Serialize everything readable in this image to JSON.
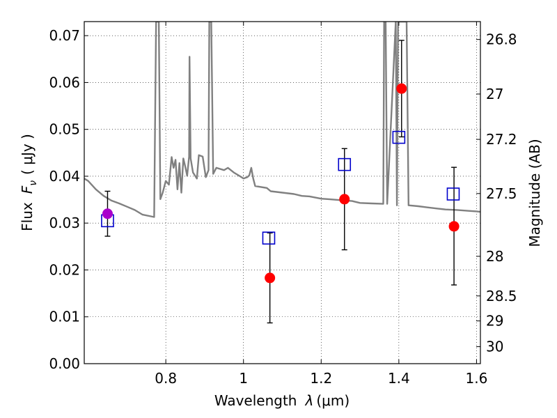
{
  "chart_data": {
    "type": "scatter",
    "xlabel": "Wavelength",
    "xlabel_symbol": "λ",
    "xlabel_unit": "(μm)",
    "ylabel": "Flux",
    "ylabel_symbol": "F",
    "ylabel_symbol_sub": "ν",
    "ylabel_unit": "( μJy )",
    "y2label": "Magnitude (AB)",
    "xlim": [
      0.59,
      1.61
    ],
    "ylim": [
      0.0,
      0.073
    ],
    "grid": true,
    "x_ticks": [
      0.8,
      1.0,
      1.2,
      1.4,
      1.6
    ],
    "x_tick_labels": [
      "0.8",
      "1",
      "1.2",
      "1.4",
      "1.6"
    ],
    "y_ticks": [
      0.0,
      0.01,
      0.02,
      0.03,
      0.04,
      0.05,
      0.06,
      0.07
    ],
    "y_tick_labels": [
      "0.00",
      "0.01",
      "0.02",
      "0.03",
      "0.04",
      "0.05",
      "0.06",
      "0.07"
    ],
    "y2_ticks": [
      {
        "label": "26.8",
        "mag": 26.8
      },
      {
        "label": "27",
        "mag": 27.0
      },
      {
        "label": "27.2",
        "mag": 27.2
      },
      {
        "label": "27.5",
        "mag": 27.5
      },
      {
        "label": "28",
        "mag": 28.0
      },
      {
        "label": "28.5",
        "mag": 28.5
      },
      {
        "label": "29",
        "mag": 29.0
      },
      {
        "label": "30",
        "mag": 30.0
      }
    ],
    "series": [
      {
        "marker": "circle",
        "color": "#ff0000",
        "points": [
          {
            "x": 0.65,
            "y": 0.032,
            "yerr_low": 0.0272,
            "yerr_high": 0.0368,
            "color": "#aa00cc"
          },
          {
            "x": 1.068,
            "y": 0.0183,
            "yerr_low": 0.0087,
            "yerr_high": 0.0279
          },
          {
            "x": 1.26,
            "y": 0.0351,
            "yerr_low": 0.0243,
            "yerr_high": 0.0459
          },
          {
            "x": 1.407,
            "y": 0.0587,
            "yerr_low": 0.0484,
            "yerr_high": 0.069
          },
          {
            "x": 1.542,
            "y": 0.0293,
            "yerr_low": 0.0168,
            "yerr_high": 0.0419
          }
        ]
      },
      {
        "marker": "open-square",
        "color": "#0000cc",
        "points": [
          {
            "x": 0.65,
            "y": 0.0305
          },
          {
            "x": 1.065,
            "y": 0.0268
          },
          {
            "x": 1.26,
            "y": 0.0425
          },
          {
            "x": 1.4,
            "y": 0.0483
          },
          {
            "x": 1.54,
            "y": 0.0362
          }
        ]
      },
      {
        "marker": "line",
        "color": "#808080",
        "points": [
          [
            0.59,
            0.0395
          ],
          [
            0.6,
            0.039
          ],
          [
            0.62,
            0.0372
          ],
          [
            0.64,
            0.0358
          ],
          [
            0.66,
            0.0348
          ],
          [
            0.68,
            0.0342
          ],
          [
            0.7,
            0.0335
          ],
          [
            0.72,
            0.0328
          ],
          [
            0.74,
            0.0318
          ],
          [
            0.77,
            0.0313
          ],
          [
            0.775,
            0.073
          ],
          [
            0.782,
            0.073
          ],
          [
            0.786,
            0.0351
          ],
          [
            0.792,
            0.0365
          ],
          [
            0.8,
            0.039
          ],
          [
            0.808,
            0.0382
          ],
          [
            0.815,
            0.0441
          ],
          [
            0.82,
            0.0418
          ],
          [
            0.825,
            0.0435
          ],
          [
            0.83,
            0.0372
          ],
          [
            0.835,
            0.0428
          ],
          [
            0.84,
            0.0365
          ],
          [
            0.845,
            0.0438
          ],
          [
            0.85,
            0.0421
          ],
          [
            0.855,
            0.0401
          ],
          [
            0.86,
            0.0442
          ],
          [
            0.861,
            0.0655
          ],
          [
            0.864,
            0.0438
          ],
          [
            0.87,
            0.0408
          ],
          [
            0.88,
            0.0395
          ],
          [
            0.885,
            0.0445
          ],
          [
            0.895,
            0.0442
          ],
          [
            0.903,
            0.0398
          ],
          [
            0.91,
            0.0413
          ],
          [
            0.912,
            0.073
          ],
          [
            0.917,
            0.073
          ],
          [
            0.922,
            0.0405
          ],
          [
            0.93,
            0.0418
          ],
          [
            0.95,
            0.0413
          ],
          [
            0.96,
            0.0418
          ],
          [
            0.975,
            0.0408
          ],
          [
            0.995,
            0.0398
          ],
          [
            1.0,
            0.0395
          ],
          [
            1.01,
            0.0398
          ],
          [
            1.015,
            0.0402
          ],
          [
            1.02,
            0.0418
          ],
          [
            1.025,
            0.0395
          ],
          [
            1.03,
            0.0379
          ],
          [
            1.06,
            0.0375
          ],
          [
            1.07,
            0.0368
          ],
          [
            1.1,
            0.0365
          ],
          [
            1.13,
            0.0362
          ],
          [
            1.15,
            0.0358
          ],
          [
            1.17,
            0.0357
          ],
          [
            1.2,
            0.0352
          ],
          [
            1.22,
            0.0351
          ],
          [
            1.25,
            0.0349
          ],
          [
            1.28,
            0.0347
          ],
          [
            1.3,
            0.0343
          ],
          [
            1.33,
            0.0342
          ],
          [
            1.36,
            0.0341
          ],
          [
            1.362,
            0.073
          ],
          [
            1.366,
            0.073
          ],
          [
            1.37,
            0.0341
          ],
          [
            1.392,
            0.073
          ],
          [
            1.395,
            0.0338
          ],
          [
            1.398,
            0.073
          ],
          [
            1.42,
            0.073
          ],
          [
            1.425,
            0.0338
          ],
          [
            1.45,
            0.0336
          ],
          [
            1.47,
            0.0334
          ],
          [
            1.5,
            0.0331
          ],
          [
            1.52,
            0.0329
          ],
          [
            1.55,
            0.0328
          ],
          [
            1.58,
            0.0326
          ],
          [
            1.6,
            0.0325
          ],
          [
            1.61,
            0.0324
          ]
        ]
      }
    ]
  }
}
